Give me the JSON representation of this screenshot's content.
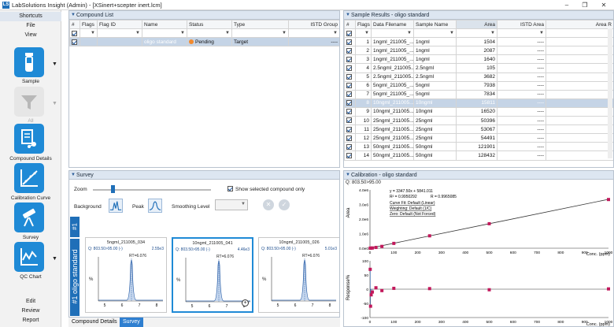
{
  "window": {
    "title": "LabSolutions Insight (Admin) - [XSinert+scepter inert.lcm]"
  },
  "nav": {
    "top_items": [
      "Shortcuts",
      "File",
      "View"
    ],
    "buttons": [
      {
        "label": "Sample",
        "icon": "sample-vial-icon",
        "enabled": true
      },
      {
        "label": "All",
        "icon": "filter-icon",
        "enabled": false
      },
      {
        "label": "Compound Details",
        "icon": "compound-details-icon",
        "enabled": true
      },
      {
        "label": "Calibration Curve",
        "icon": "calibration-curve-icon",
        "enabled": true
      },
      {
        "label": "Survey",
        "icon": "telescope-icon",
        "enabled": true
      },
      {
        "label": "QC Chart",
        "icon": "qc-chart-icon",
        "enabled": true
      }
    ],
    "bottom_items": [
      "Edit",
      "Review",
      "Report"
    ]
  },
  "compound_list": {
    "title": "Compound List",
    "columns": [
      "#",
      "Flags",
      "Flag ID",
      "Name",
      "Status",
      "Type",
      "ISTD Group"
    ],
    "row": {
      "num": "1",
      "name": "oligo standard",
      "status": "Pending",
      "type": "Target",
      "istd": "----"
    }
  },
  "sample_results": {
    "title": "Sample Results - oligo standard",
    "columns": [
      "#",
      "Flags",
      "Data Filename",
      "Sample Name",
      "Area",
      "ISTD Area",
      "Area R"
    ],
    "rows": [
      {
        "n": "1",
        "file": "1ngml_211005_...",
        "sample": "1ngml",
        "area": "1504",
        "istd": "----",
        "sel": false
      },
      {
        "n": "2",
        "file": "1ngml_211005_...",
        "sample": "1ngml",
        "area": "2087",
        "istd": "----",
        "sel": false
      },
      {
        "n": "3",
        "file": "1ngml_211005_...",
        "sample": "1ngml",
        "area": "1640",
        "istd": "----",
        "sel": false
      },
      {
        "n": "4",
        "file": "2.5ngml_211005...",
        "sample": "2.5ngml",
        "area": "105",
        "istd": "----",
        "sel": false
      },
      {
        "n": "5",
        "file": "2.5ngml_211005...",
        "sample": "2.5ngml",
        "area": "3682",
        "istd": "----",
        "sel": false
      },
      {
        "n": "6",
        "file": "5ngml_211005_...",
        "sample": "5ngml",
        "area": "7938",
        "istd": "----",
        "sel": false
      },
      {
        "n": "7",
        "file": "5ngml_211005_...",
        "sample": "5ngml",
        "area": "7834",
        "istd": "----",
        "sel": false
      },
      {
        "n": "8",
        "file": "10ngml_211005...",
        "sample": "10ngml",
        "area": "15811",
        "istd": "----",
        "sel": true
      },
      {
        "n": "9",
        "file": "10ngml_211005...",
        "sample": "10ngml",
        "area": "16520",
        "istd": "----",
        "sel": false
      },
      {
        "n": "10",
        "file": "25ngml_211005...",
        "sample": "25ngml",
        "area": "50396",
        "istd": "----",
        "sel": false
      },
      {
        "n": "11",
        "file": "25ngml_211005...",
        "sample": "25ngml",
        "area": "53067",
        "istd": "----",
        "sel": false
      },
      {
        "n": "12",
        "file": "25ngml_211005...",
        "sample": "25ngml",
        "area": "54491",
        "istd": "----",
        "sel": false
      },
      {
        "n": "13",
        "file": "50ngml_211005...",
        "sample": "50ngml",
        "area": "121901",
        "istd": "----",
        "sel": false
      },
      {
        "n": "14",
        "file": "50ngml_211005...",
        "sample": "50ngml",
        "area": "128432",
        "istd": "----",
        "sel": false
      }
    ]
  },
  "survey": {
    "title": "Survey",
    "zoom_label": "Zoom",
    "zoom_level": 0.15,
    "show_selected_label": "Show selected compound only",
    "background_label": "Background",
    "peak_label": "Peak",
    "smoothing_label": "Smoothing Level",
    "group_number": "#1",
    "group_name": "#1 oligo standard",
    "peaks": [
      {
        "name": "5ngml_211005_034",
        "mz": "Q: 803.50>95.00 (-)",
        "area": "2.55e3",
        "rt": "RT=6.076",
        "selected": false
      },
      {
        "name": "10ngml_211005_041",
        "mz": "Q: 803.50>95.00 (-)",
        "area": "4.46e3",
        "rt": "RT=6.076",
        "selected": true
      },
      {
        "name": "10ngml_211005_026",
        "mz": "Q: 803.50>95.00 (-)",
        "area": "5.01e3",
        "rt": "RT=6.076",
        "selected": false
      }
    ],
    "peak_yaxis": "%",
    "peak_xticks": [
      "5",
      "6",
      "7",
      "8"
    ]
  },
  "bottom_tabs": [
    "Compound Details",
    "Survey"
  ],
  "calibration": {
    "title": "Calibration - oligo standard",
    "mz": "Q: 803.50>95.00",
    "equation": "y = 3347.50x + 5841.011",
    "r2": "R² = 0.9950292",
    "r": "R = 0.9965085",
    "curve_fit": "Curve Fit: Default (Linear)",
    "weighting": "Weighting: Default (1/C)",
    "zero": "Zero: Default (Not Forced)",
    "ylabel_top": "Area",
    "ylabel_bottom": "Response%",
    "xlabel": "Conc. (ppm)"
  },
  "chart_data": [
    {
      "type": "scatter",
      "title": "Calibration - oligo standard",
      "xlabel": "Conc. (ppm)",
      "ylabel": "Area",
      "xlim": [
        0,
        1000
      ],
      "ylim": [
        0,
        4000000
      ],
      "x": [
        1,
        2.5,
        5,
        10,
        25,
        50,
        100,
        250,
        500,
        1000
      ],
      "y": [
        1600,
        3682,
        7900,
        16000,
        52000,
        125000,
        330000,
        850000,
        1680000,
        3340000
      ],
      "fit": {
        "slope": 3347.5,
        "intercept": 5841.011
      },
      "xticks": [
        "0",
        "100",
        "200",
        "300",
        "400",
        "500",
        "600",
        "700",
        "800",
        "900",
        "1000"
      ],
      "yticks": [
        "0.0e0",
        "1.0e6",
        "2.0e6",
        "3.0e6",
        "4.0e6"
      ]
    },
    {
      "type": "scatter",
      "ylabel": "Response%",
      "xlabel": "Conc. (ppm)",
      "xlim": [
        0,
        1000
      ],
      "ylim": [
        -100,
        100
      ],
      "x": [
        1,
        2.5,
        5,
        10,
        25,
        50,
        100,
        250,
        500,
        1000
      ],
      "y": [
        70,
        -60,
        -20,
        -10,
        5,
        -5,
        3,
        2,
        -2,
        1
      ],
      "xticks": [
        "0",
        "100",
        "200",
        "300",
        "400",
        "500",
        "600",
        "700",
        "800",
        "900",
        "1000"
      ],
      "yticks": [
        "100",
        "50",
        "0",
        "-50",
        "-100"
      ]
    }
  ]
}
